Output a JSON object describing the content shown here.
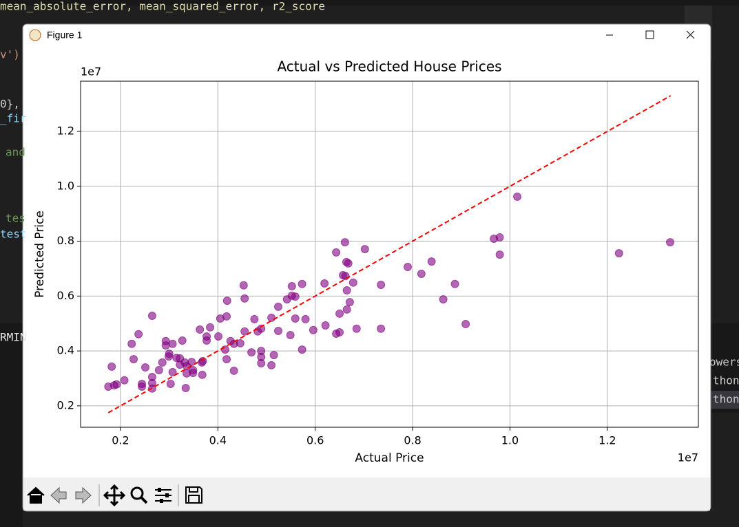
{
  "window": {
    "title": "Figure 1"
  },
  "background_text": [
    "mean_absolute_error, mean_squared_error, r2_score",
    "v')",
    "0},",
    "_fir",
    "and",
    "tes",
    "test",
    "RMIN",
    "owersh",
    "thon",
    "thon"
  ],
  "chart_data": {
    "type": "scatter",
    "title": "Actual vs Predicted House Prices",
    "x_label": "Actual Price",
    "y_label": "Predicted Price",
    "x_offset_label": "1e7",
    "y_offset_label": "1e7",
    "xlim": [
      0.118,
      1.387
    ],
    "ylim": [
      0.122,
      1.383
    ],
    "xticks": [
      0.2,
      0.4,
      0.6,
      0.8,
      {
        "value": 1,
        "label": "1.0"
      },
      1.2
    ],
    "yticks": [
      0.2,
      0.4,
      0.6,
      0.8,
      {
        "value": 1,
        "label": "1.0"
      },
      1.2
    ],
    "grid": true,
    "series": [
      {
        "color": "#800080",
        "x": [
          0.175,
          0.182,
          0.187,
          0.192,
          0.208,
          0.223,
          0.227,
          0.237,
          0.244,
          0.244,
          0.251,
          0.265,
          0.265,
          0.265,
          0.265,
          0.279,
          0.286,
          0.293,
          0.293,
          0.299,
          0.3,
          0.303,
          0.307,
          0.307,
          0.315,
          0.322,
          0.322,
          0.327,
          0.332,
          0.334,
          0.336,
          0.336,
          0.346,
          0.349,
          0.349,
          0.363,
          0.367,
          0.368,
          0.369,
          0.377,
          0.377,
          0.384,
          0.401,
          0.405,
          0.415,
          0.418,
          0.418,
          0.419,
          0.426,
          0.433,
          0.433,
          0.446,
          0.453,
          0.455,
          0.455,
          0.469,
          0.475,
          0.482,
          0.489,
          0.489,
          0.489,
          0.489,
          0.51,
          0.51,
          0.515,
          0.524,
          0.524,
          0.542,
          0.549,
          0.552,
          0.552,
          0.559,
          0.559,
          0.573,
          0.573,
          0.58,
          0.596,
          0.619,
          0.621,
          0.643,
          0.643,
          0.65,
          0.65,
          0.657,
          0.661,
          0.662,
          0.664,
          0.665,
          0.665,
          0.668,
          0.671,
          0.678,
          0.685,
          0.702,
          0.735,
          0.735,
          0.79,
          0.818,
          0.839,
          0.863,
          0.887,
          0.909,
          0.967,
          0.979,
          0.979,
          1.015,
          1.224,
          1.329
        ],
        "y": [
          0.27,
          0.343,
          0.275,
          0.278,
          0.293,
          0.426,
          0.37,
          0.461,
          0.28,
          0.27,
          0.34,
          0.528,
          0.305,
          0.283,
          0.263,
          0.33,
          0.358,
          0.436,
          0.42,
          0.38,
          0.39,
          0.28,
          0.426,
          0.323,
          0.375,
          0.35,
          0.373,
          0.438,
          0.358,
          0.265,
          0.318,
          0.345,
          0.36,
          0.33,
          0.32,
          0.478,
          0.358,
          0.313,
          0.363,
          0.453,
          0.438,
          0.486,
          0.453,
          0.518,
          0.405,
          0.37,
          0.526,
          0.583,
          0.436,
          0.328,
          0.426,
          0.428,
          0.639,
          0.471,
          0.591,
          0.395,
          0.516,
          0.471,
          0.481,
          0.4,
          0.378,
          0.355,
          0.348,
          0.521,
          0.385,
          0.473,
          0.561,
          0.588,
          0.458,
          0.636,
          0.601,
          0.598,
          0.518,
          0.405,
          0.644,
          0.516,
          0.476,
          0.646,
          0.493,
          0.759,
          0.463,
          0.468,
          0.536,
          0.676,
          0.796,
          0.673,
          0.724,
          0.551,
          0.621,
          0.719,
          0.578,
          0.649,
          0.481,
          0.771,
          0.641,
          0.481,
          0.706,
          0.681,
          0.726,
          0.588,
          0.644,
          0.498,
          0.809,
          0.814,
          0.751,
          0.962,
          0.756,
          0.796
        ]
      }
    ],
    "reference_line": {
      "color": "#ff0000",
      "x": [
        0.175,
        1.33
      ],
      "y": [
        0.175,
        1.33
      ]
    }
  }
}
